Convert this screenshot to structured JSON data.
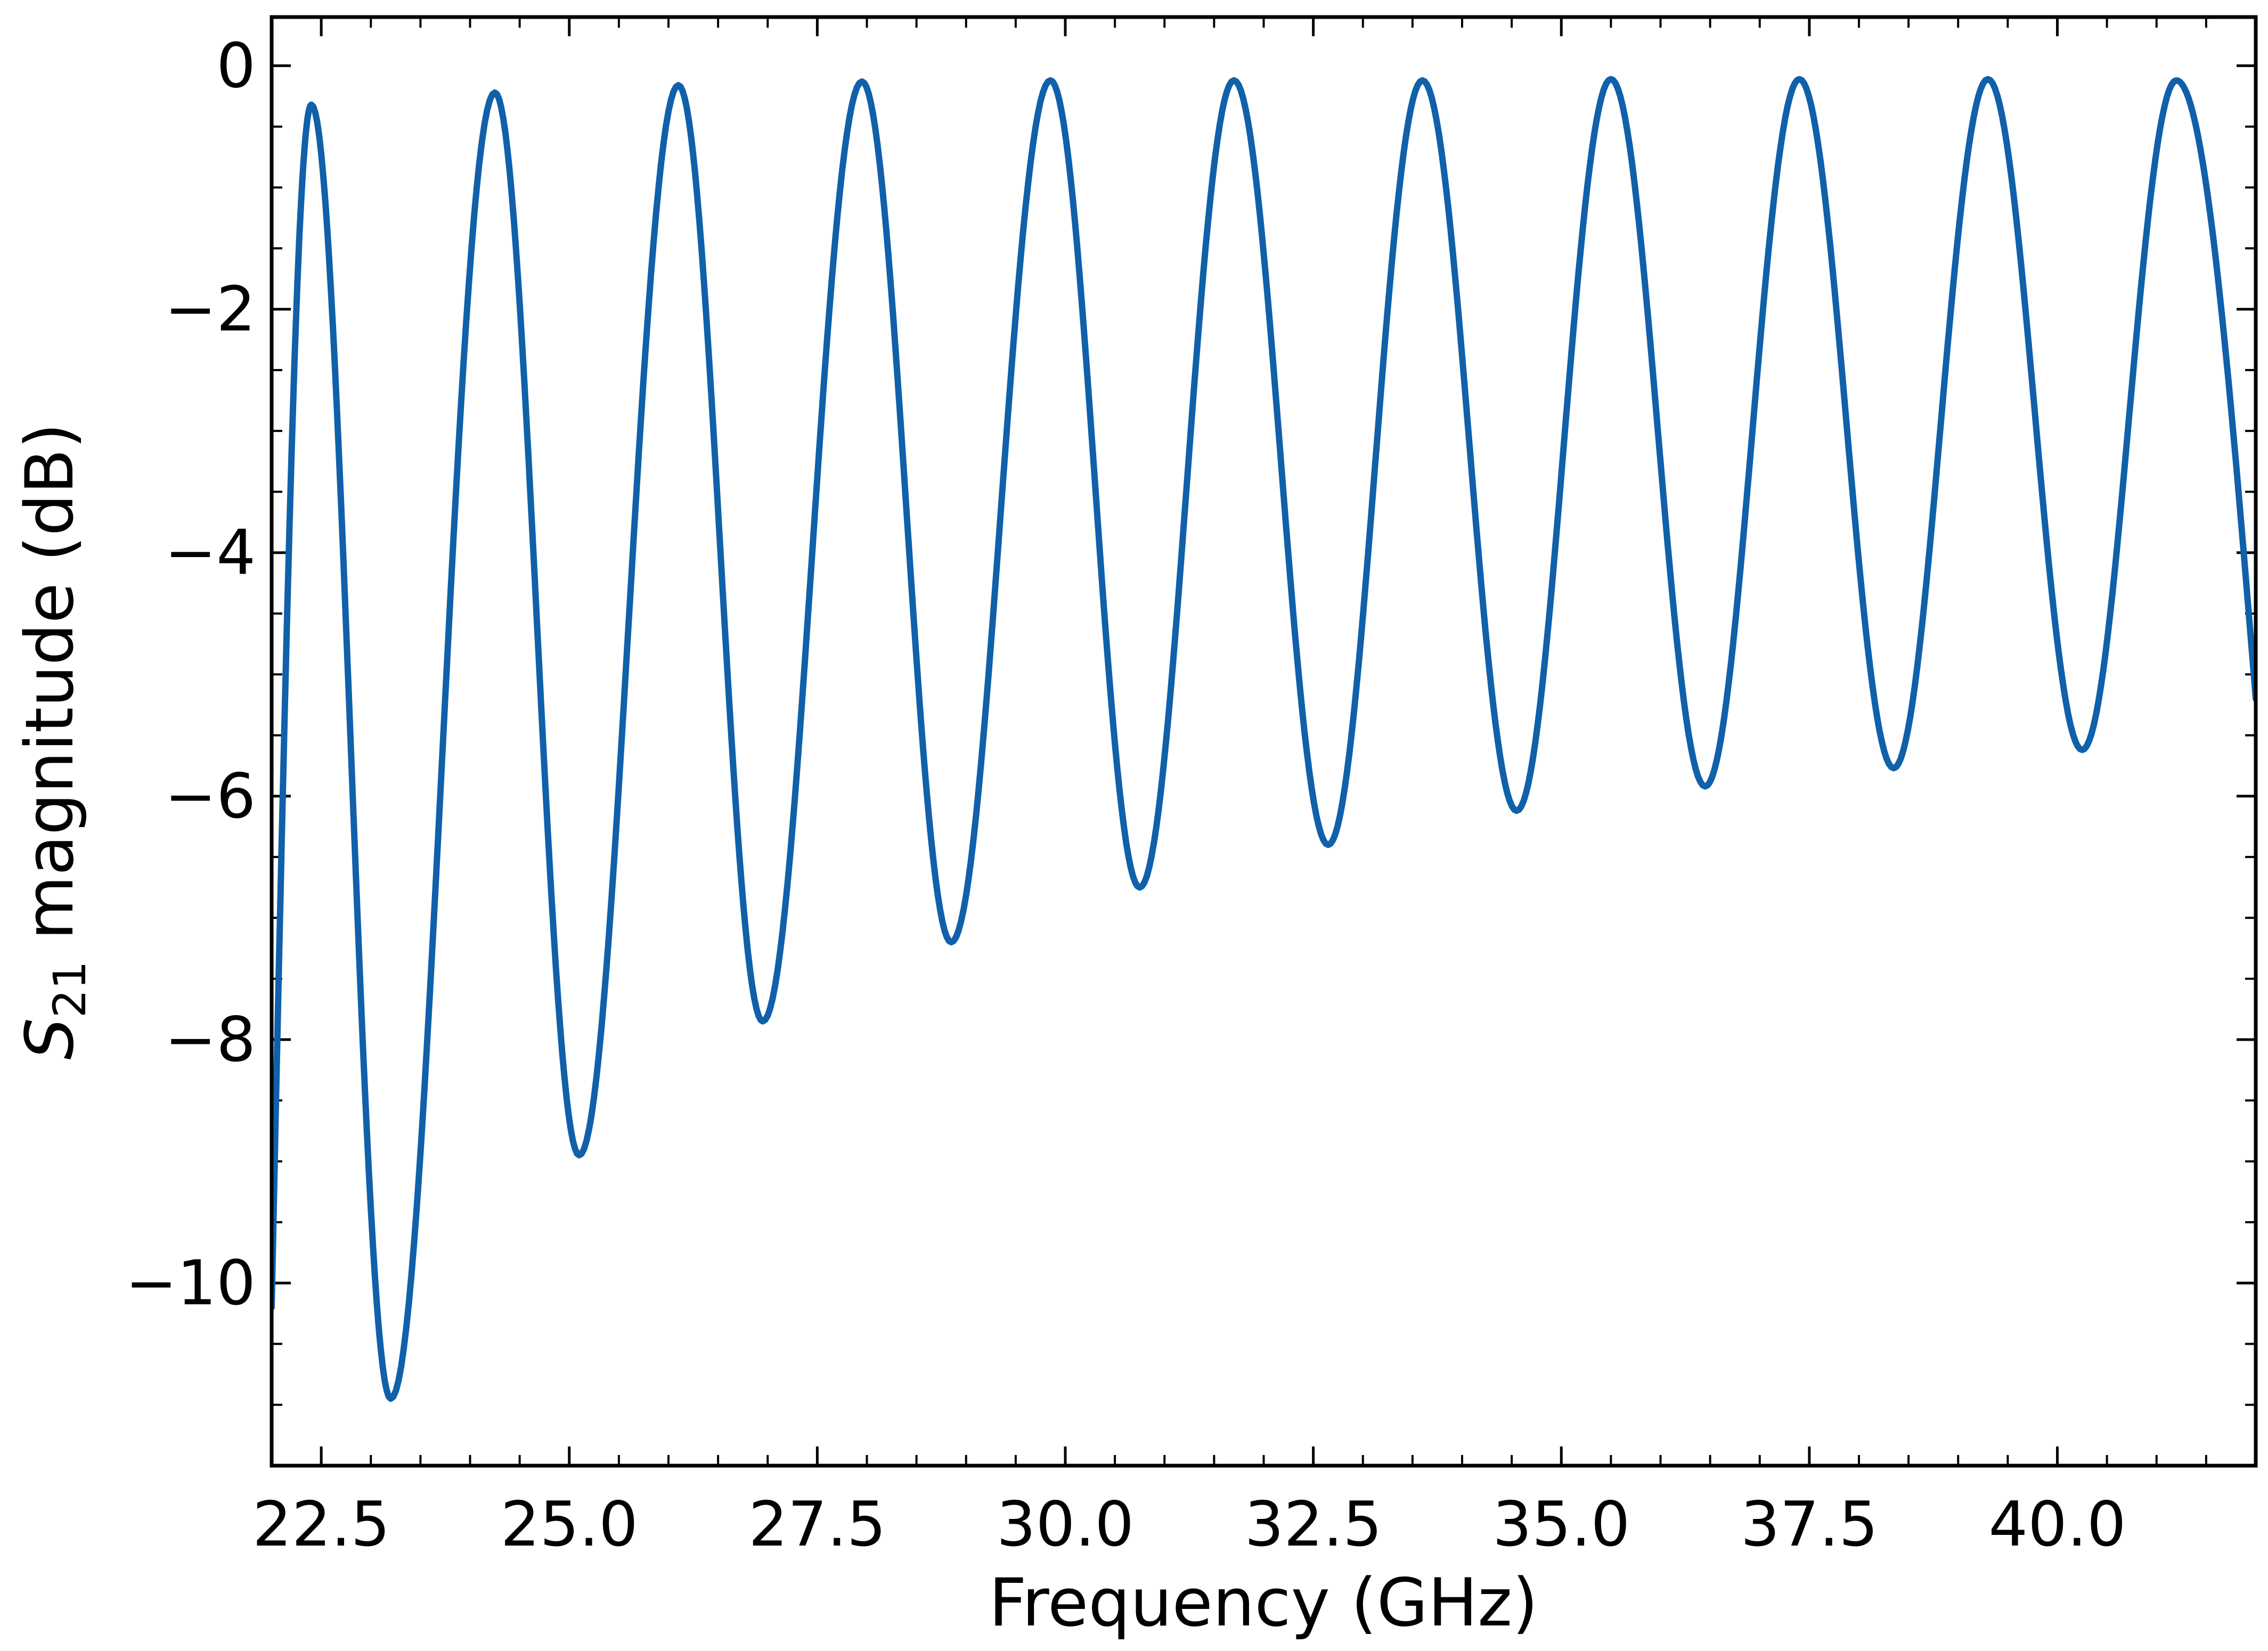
{
  "chart_data": {
    "type": "line",
    "title": "",
    "xlabel": "Frequency (GHz)",
    "ylabel": {
      "symbol": "S",
      "subscript": "21",
      "rest": " magnitude (dB)"
    },
    "xlim": [
      22.0,
      42.0
    ],
    "ylim": [
      -11.5,
      0.4
    ],
    "x_ticks": [
      22.5,
      25.0,
      27.5,
      30.0,
      32.5,
      35.0,
      37.5,
      40.0
    ],
    "x_tick_labels": [
      "22.5",
      "25.0",
      "27.5",
      "30.0",
      "32.5",
      "35.0",
      "37.5",
      "40.0"
    ],
    "x_minor_step": 0.5,
    "y_ticks": [
      0,
      -2,
      -4,
      -6,
      -8,
      -10
    ],
    "y_tick_labels": [
      "0",
      "−2",
      "−4",
      "−6",
      "−8",
      "−10"
    ],
    "y_minor_step": 0.5,
    "tick_direction": "in",
    "ticks_on_all_sides": true,
    "grid": false,
    "legend": "none",
    "series": [
      {
        "color": "#1060aa",
        "peaks": [
          {
            "x": 22.4,
            "y": -0.32
          },
          {
            "x": 24.25,
            "y": -0.22
          },
          {
            "x": 26.1,
            "y": -0.16
          },
          {
            "x": 27.95,
            "y": -0.13
          },
          {
            "x": 29.85,
            "y": -0.12
          },
          {
            "x": 31.7,
            "y": -0.12
          },
          {
            "x": 33.6,
            "y": -0.12
          },
          {
            "x": 35.5,
            "y": -0.11
          },
          {
            "x": 37.4,
            "y": -0.11
          },
          {
            "x": 39.3,
            "y": -0.11
          },
          {
            "x": 41.2,
            "y": -0.12
          }
        ],
        "troughs": [
          {
            "x": 23.2,
            "y": -10.95
          },
          {
            "x": 25.1,
            "y": -8.95
          },
          {
            "x": 26.95,
            "y": -7.85
          },
          {
            "x": 28.85,
            "y": -7.2
          },
          {
            "x": 30.75,
            "y": -6.75
          },
          {
            "x": 32.65,
            "y": -6.4
          },
          {
            "x": 34.55,
            "y": -6.12
          },
          {
            "x": 36.45,
            "y": -5.92
          },
          {
            "x": 38.35,
            "y": -5.77
          },
          {
            "x": 40.25,
            "y": -5.62
          }
        ],
        "start": {
          "x": 22.0,
          "y": -10.2
        },
        "end": {
          "x": 42.0,
          "y": -5.2
        }
      }
    ]
  }
}
